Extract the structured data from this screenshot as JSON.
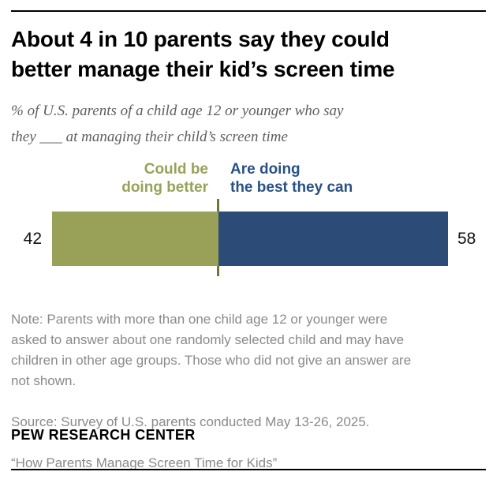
{
  "header": {
    "title": "About 4 in 10 parents say they could\nbetter manage their kid’s screen time",
    "subtitle": "% of U.S. parents of a child age 12 or younger who say\nthey ___ at managing their child’s screen time"
  },
  "chart_data": {
    "type": "bar",
    "orientation": "horizontal_stacked",
    "unit": "% of U.S. parents",
    "categories": [
      "Could be doing better",
      "Are doing the best they can"
    ],
    "series": [
      {
        "name": "Could be doing better",
        "value": 42,
        "color": "#99A158",
        "legend_label": "Could be\ndoing better",
        "legend_color": "#99A158"
      },
      {
        "name": "Are doing the best they can",
        "value": 58,
        "color": "#2C4B76",
        "legend_label": "Are doing\nthe best they can",
        "legend_color": "#2A5185"
      }
    ],
    "values": [
      42,
      58
    ],
    "value_labels": [
      "42",
      "58"
    ],
    "xlim": [
      0,
      100
    ],
    "grid": false,
    "legend_position": "above-bar"
  },
  "footer": {
    "note": "Note: Parents with more than one child age 12 or younger were\nasked to answer about one randomly selected child and may have\nchildren in other age groups. Those who did not give an answer are\nnot shown.",
    "source": "Source: Survey of U.S. parents conducted May 13-26, 2025.",
    "report_title": "“How Parents Manage Screen Time for Kids”",
    "brand": "PEW RESEARCH CENTER"
  },
  "colors": {
    "divider": "#6F7636",
    "rule": "#000000",
    "note_gray": "#8A8A8A",
    "subtitle_gray": "#5E5F63"
  }
}
